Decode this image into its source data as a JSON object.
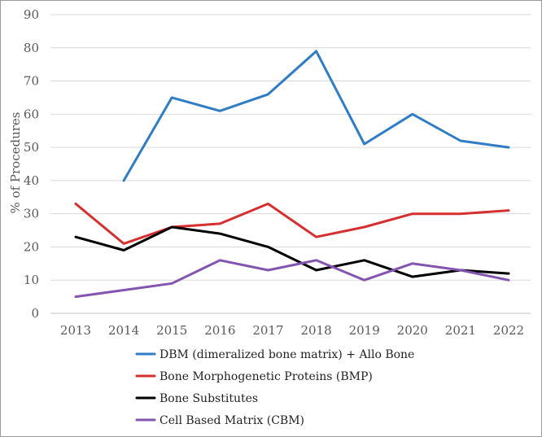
{
  "chart_data": {
    "type": "line",
    "title": "",
    "xlabel": "",
    "ylabel": "% of Procedures",
    "categories": [
      "2013",
      "2014",
      "2015",
      "2016",
      "2017",
      "2018",
      "2019",
      "2020",
      "2021",
      "2022"
    ],
    "ylim": [
      0,
      90
    ],
    "yticks": [
      0,
      10,
      20,
      30,
      40,
      50,
      60,
      70,
      80,
      90
    ],
    "grid": true,
    "legend_position": "bottom",
    "series": [
      {
        "name": "DBM (dimeralized bone matrix) + Allo Bone",
        "color": "#2e7dc6",
        "values": [
          null,
          40,
          65,
          61,
          66,
          79,
          51,
          60,
          52,
          50
        ]
      },
      {
        "name": "Bone Morphogenetic Proteins (BMP)",
        "color": "#d62f2f",
        "values": [
          33,
          21,
          26,
          27,
          33,
          23,
          26,
          30,
          30,
          31
        ]
      },
      {
        "name": "Bone Substitutes",
        "color": "#000000",
        "values": [
          23,
          19,
          26,
          24,
          20,
          13,
          16,
          11,
          13,
          12
        ]
      },
      {
        "name": "Cell Based Matrix (CBM)",
        "color": "#8455b0",
        "values": [
          5,
          7,
          9,
          16,
          13,
          16,
          10,
          15,
          13,
          10
        ]
      }
    ]
  }
}
